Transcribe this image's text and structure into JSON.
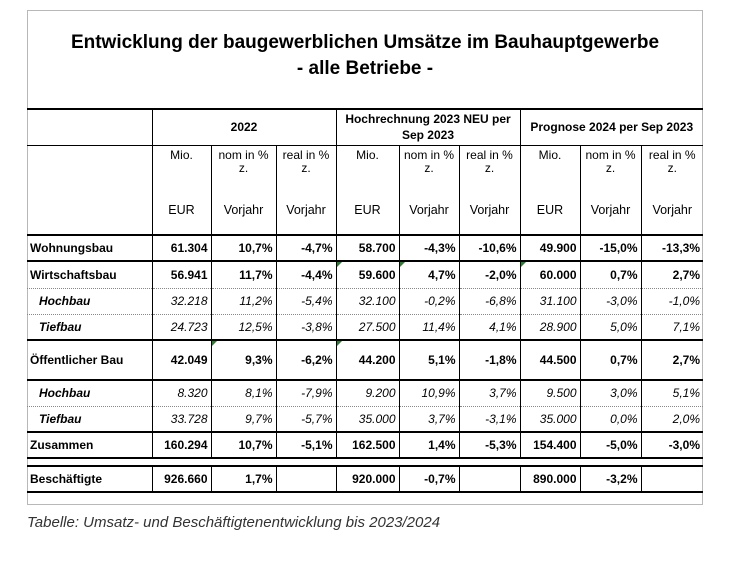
{
  "title_line1": "Entwicklung der baugewerblichen Umsätze im Bauhauptgewerbe",
  "title_line2": "- alle Betriebe -",
  "groups": [
    "2022",
    "Hochrechnung 2023 NEU per Sep 2023",
    "Prognose 2024  per Sep 2023"
  ],
  "subheads": [
    "Mio.",
    "nom in % z.",
    "real in % z.",
    "Mio.",
    "nom in % z.",
    "real in % z.",
    "Mio.",
    "nom in % z.",
    "real in % z."
  ],
  "units": [
    "EUR",
    "Vorjahr",
    "Vorjahr",
    "EUR",
    "Vorjahr",
    "Vorjahr",
    "EUR",
    "Vorjahr",
    "Vorjahr"
  ],
  "rows": [
    {
      "label": "Wohnungsbau",
      "values": [
        "61.304",
        "10,7%",
        "-4,7%",
        "58.700",
        "-4,3%",
        "-10,6%",
        "49.900",
        "-15,0%",
        "-13,3%"
      ]
    },
    {
      "label": "Wirtschaftsbau",
      "values": [
        "56.941",
        "11,7%",
        "-4,4%",
        "59.600",
        "4,7%",
        "-2,0%",
        "60.000",
        "0,7%",
        "2,7%"
      ]
    },
    {
      "label": "Hochbau",
      "values": [
        "32.218",
        "11,2%",
        "-5,4%",
        "32.100",
        "-0,2%",
        "-6,8%",
        "31.100",
        "-3,0%",
        "-1,0%"
      ]
    },
    {
      "label": "Tiefbau",
      "values": [
        "24.723",
        "12,5%",
        "-3,8%",
        "27.500",
        "11,4%",
        "4,1%",
        "28.900",
        "5,0%",
        "7,1%"
      ]
    },
    {
      "label": "Öffentlicher Bau",
      "values": [
        "42.049",
        "9,3%",
        "-6,2%",
        "44.200",
        "5,1%",
        "-1,8%",
        "44.500",
        "0,7%",
        "2,7%"
      ]
    },
    {
      "label": "Hochbau",
      "values": [
        "8.320",
        "8,1%",
        "-7,9%",
        "9.200",
        "10,9%",
        "3,7%",
        "9.500",
        "3,0%",
        "5,1%"
      ]
    },
    {
      "label": "Tiefbau",
      "values": [
        "33.728",
        "9,7%",
        "-5,7%",
        "35.000",
        "3,7%",
        "-3,1%",
        "35.000",
        "0,0%",
        "2,0%"
      ]
    },
    {
      "label": "Zusammen",
      "values": [
        "160.294",
        "10,7%",
        "-5,1%",
        "162.500",
        "1,4%",
        "-5,3%",
        "154.400",
        "-5,0%",
        "-3,0%"
      ]
    },
    {
      "label": "Beschäftigte",
      "values": [
        "926.660",
        "1,7%",
        "",
        "920.000",
        "-0,7%",
        "",
        "890.000",
        "-3,2%",
        ""
      ]
    }
  ],
  "caption": "Tabelle: Umsatz- und Beschäftigtenentwicklung bis 2023/2024",
  "accent_color": "#2f7d32"
}
